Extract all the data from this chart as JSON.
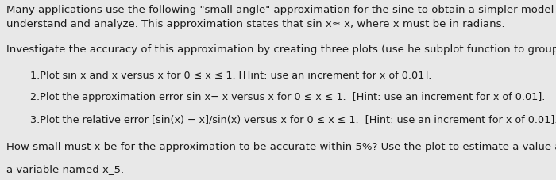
{
  "background_color": "#e8e8e8",
  "text_color": "#1a1a1a",
  "font_size_body": 9.5,
  "font_size_numbered": 9.2,
  "line1": "Many applications use the following \"small angle\" approximation for the sine to obtain a simpler model that is easy to",
  "line2": "understand and analyze. This approximation states that sin x≈ x, where x must be in radians.",
  "line3": "Investigate the accuracy of this approximation by creating three plots (use he subplot function to group them):",
  "item1": "1.Plot sin x and x versus x for 0 ≤ x ≤ 1. [Hint: use an increment for x of 0.01].",
  "item2": "2.Plot the approximation error sin x− x versus x for 0 ≤ x ≤ 1.  [Hint: use an increment for x of 0.01].",
  "item3": "3.Plot the relative error [sin(x) − x]/sin(x) versus x for 0 ≤ x ≤ 1.  [Hint: use an increment for x of 0.01].",
  "line4": "How small must x be for the approximation to be accurate within 5%? Use the plot to estimate a value and store your answer i",
  "line5": "a variable named x_5."
}
